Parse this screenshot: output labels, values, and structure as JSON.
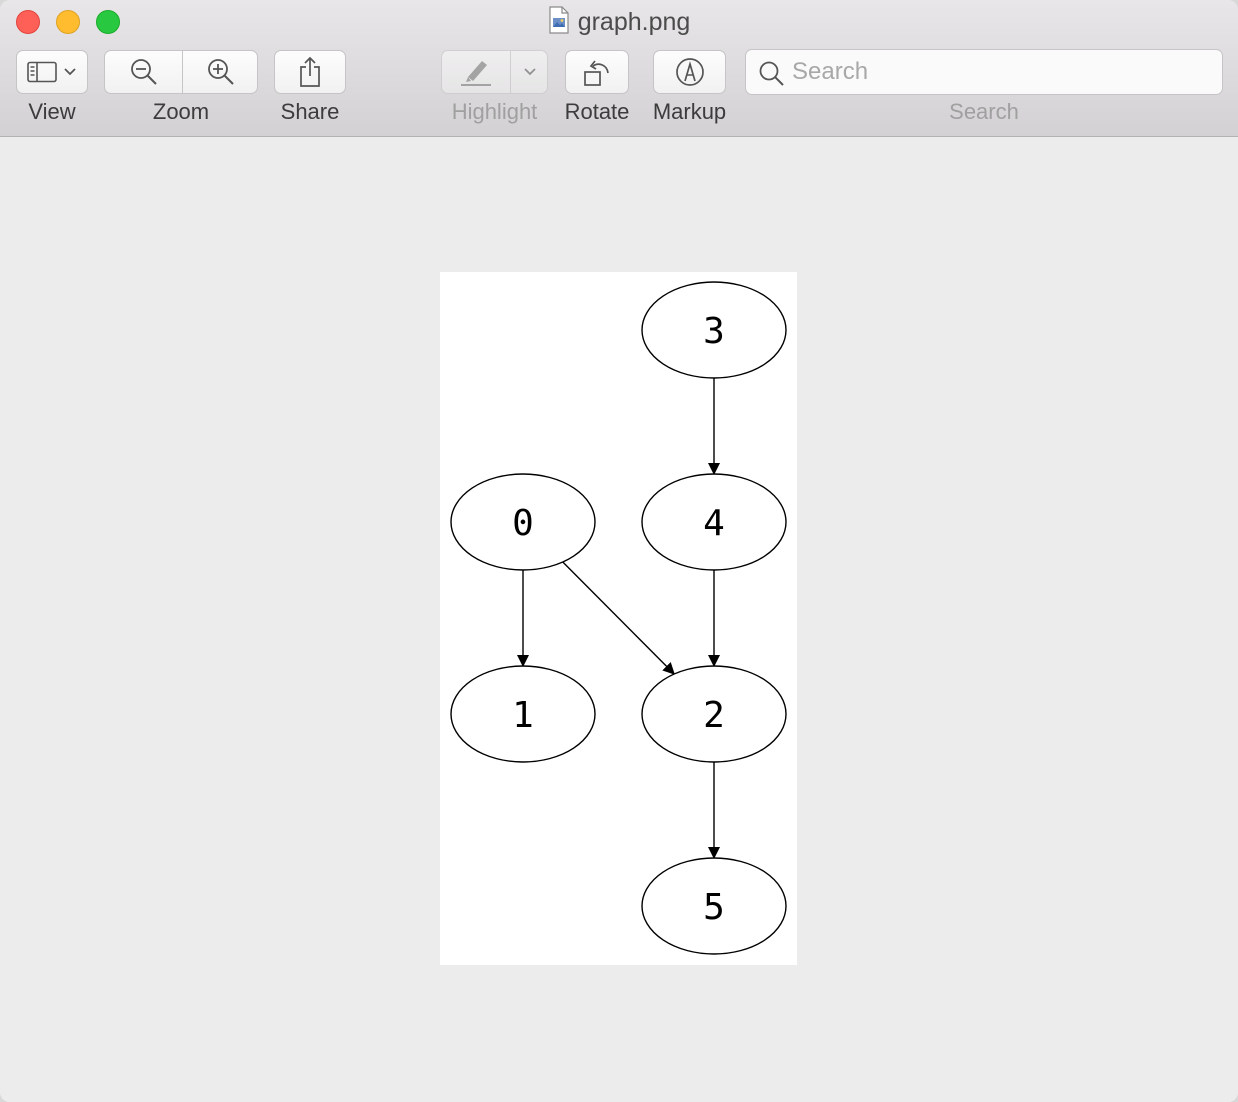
{
  "window": {
    "title": "graph.png"
  },
  "toolbar": {
    "view_label": "View",
    "zoom_label": "Zoom",
    "share_label": "Share",
    "highlight_label": "Highlight",
    "rotate_label": "Rotate",
    "markup_label": "Markup",
    "search_label": "Search",
    "search_placeholder": "Search",
    "search_value": ""
  },
  "graph": {
    "nodes": [
      {
        "id": "0",
        "label": "0"
      },
      {
        "id": "1",
        "label": "1"
      },
      {
        "id": "2",
        "label": "2"
      },
      {
        "id": "3",
        "label": "3"
      },
      {
        "id": "4",
        "label": "4"
      },
      {
        "id": "5",
        "label": "5"
      }
    ],
    "edges": [
      {
        "from": "3",
        "to": "4"
      },
      {
        "from": "0",
        "to": "1"
      },
      {
        "from": "0",
        "to": "2"
      },
      {
        "from": "4",
        "to": "2"
      },
      {
        "from": "2",
        "to": "5"
      }
    ]
  },
  "colors": {
    "close": "#fe5f57",
    "minimize": "#febc2e",
    "maximize": "#28c840"
  }
}
